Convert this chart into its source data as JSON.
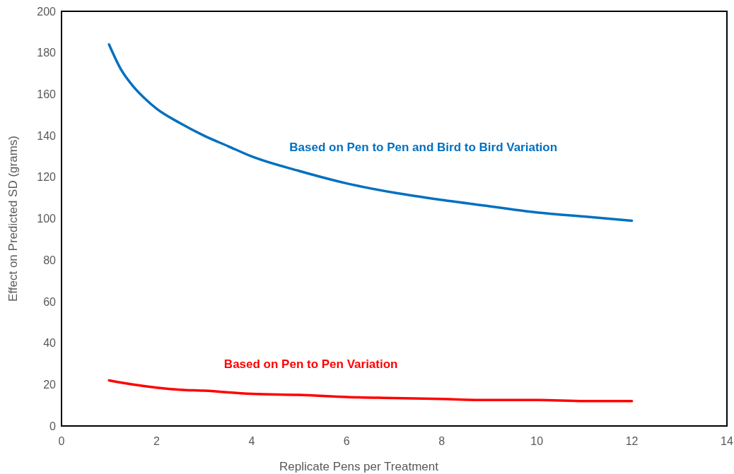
{
  "chart_data": {
    "type": "line",
    "xlabel": "Replicate Pens per Treatment",
    "ylabel": "Effect on Predicted SD (grams)",
    "xlim": [
      0,
      14
    ],
    "xticks": [
      0,
      2,
      4,
      6,
      8,
      10,
      12,
      14
    ],
    "ylim": [
      0,
      200
    ],
    "yticks": [
      0,
      20,
      40,
      60,
      80,
      100,
      120,
      140,
      160,
      180,
      200
    ],
    "grid": false,
    "marker": "none",
    "line_style": "solid",
    "series": [
      {
        "name": "Based on Pen to Pen and Bird to Bird Variation",
        "color": "#0070c0",
        "x": [
          1,
          1.25,
          1.5,
          1.75,
          2,
          2.5,
          3,
          3.5,
          4,
          5,
          6,
          7,
          8,
          9,
          10,
          11,
          12
        ],
        "values": [
          184,
          172,
          164,
          158,
          153,
          146,
          140,
          135,
          130,
          123,
          117,
          112.5,
          109,
          106,
          103,
          101,
          99
        ]
      },
      {
        "name": "Based on Pen to Pen Variation",
        "color": "#ff0000",
        "x": [
          1,
          1.5,
          2,
          2.5,
          3,
          4,
          5,
          6,
          7,
          8,
          9,
          10,
          11,
          12
        ],
        "values": [
          22,
          20,
          18.5,
          17.5,
          17,
          15.5,
          15,
          14,
          13.5,
          13,
          12.5,
          12.5,
          12,
          12
        ]
      }
    ]
  }
}
